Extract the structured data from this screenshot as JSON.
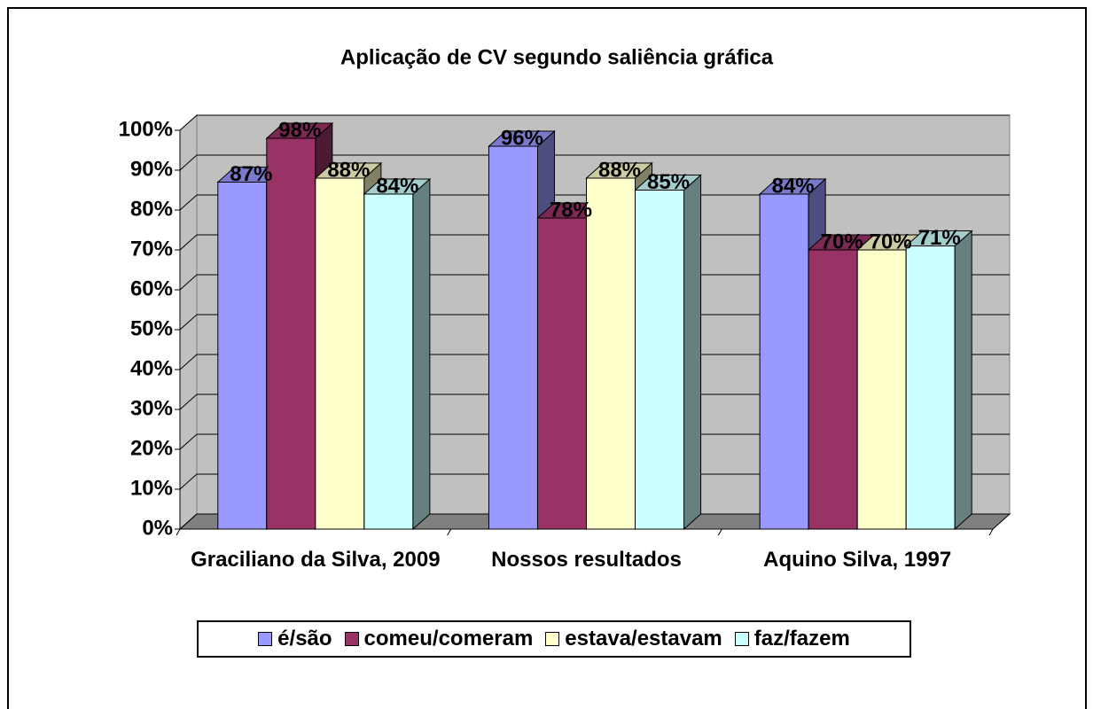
{
  "chart_data": {
    "type": "bar3d",
    "title": "Aplicação de CV segundo saliência gráfica",
    "categories": [
      "Graciliano da Silva, 2009",
      "Nossos resultados",
      "Aquino Silva, 1997"
    ],
    "series": [
      {
        "name": "é/são",
        "color": "#9999ff",
        "values": [
          87,
          96,
          84
        ],
        "value_labels": [
          "87%",
          "96%",
          "84%"
        ]
      },
      {
        "name": "comeu/comeram",
        "color": "#993366",
        "values": [
          98,
          78,
          70
        ],
        "value_labels": [
          "98%",
          "78%",
          "70%"
        ]
      },
      {
        "name": "estava/estavam",
        "color": "#ffffcc",
        "values": [
          88,
          88,
          70
        ],
        "value_labels": [
          "88%",
          "88%",
          "70%"
        ]
      },
      {
        "name": "faz/fazem",
        "color": "#ccffff",
        "values": [
          84,
          85,
          71
        ],
        "value_labels": [
          "84%",
          "85%",
          "71%"
        ]
      }
    ],
    "ylim": [
      0,
      100
    ],
    "yticks": [
      {
        "value": 0,
        "label": "0%"
      },
      {
        "value": 10,
        "label": "10%"
      },
      {
        "value": 20,
        "label": "20%"
      },
      {
        "value": 30,
        "label": "30%"
      },
      {
        "value": 40,
        "label": "40%"
      },
      {
        "value": 50,
        "label": "50%"
      },
      {
        "value": 60,
        "label": "60%"
      },
      {
        "value": 70,
        "label": "70%"
      },
      {
        "value": 80,
        "label": "80%"
      },
      {
        "value": 90,
        "label": "90%"
      },
      {
        "value": 100,
        "label": "100%"
      }
    ],
    "grid": true,
    "legend": "bottom"
  }
}
